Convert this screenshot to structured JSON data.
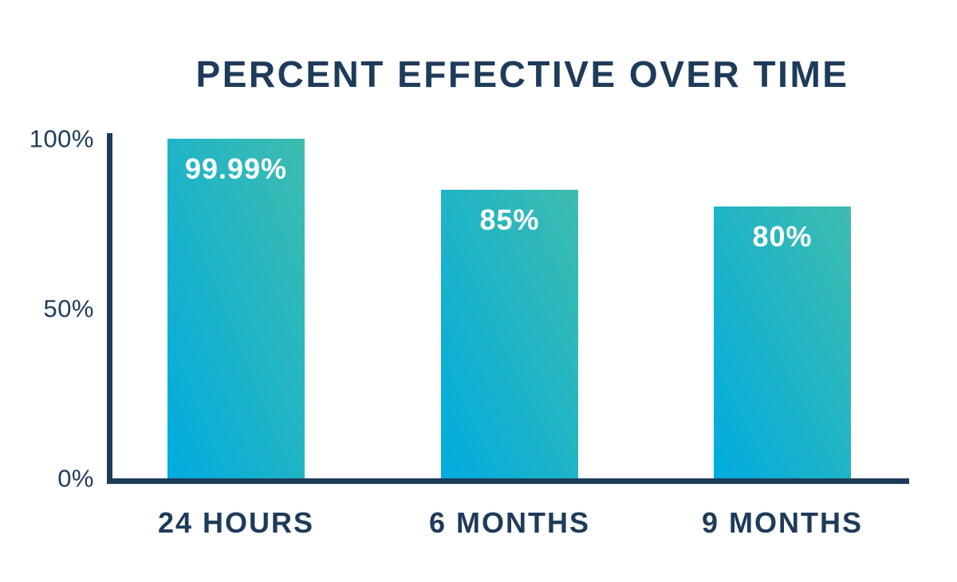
{
  "chart_data": {
    "type": "bar",
    "title": "PERCENT EFFECTIVE OVER TIME",
    "categories": [
      "24 HOURS",
      "6 MONTHS",
      "9 MONTHS"
    ],
    "values": [
      99.99,
      85,
      80
    ],
    "bar_labels": [
      "99.99%",
      "85%",
      "80%"
    ],
    "y_ticks": [
      {
        "label": "100%",
        "value": 100
      },
      {
        "label": "50%",
        "value": 50
      },
      {
        "label": "0%",
        "value": 0
      }
    ],
    "ylim": [
      0,
      100
    ],
    "xlabel": "",
    "ylabel": "",
    "grid": false,
    "legend": null,
    "colors": {
      "bar_gradient_start": "#00acdf",
      "bar_gradient_end": "#3ebcae",
      "axis": "#1f3b5a",
      "title_text": "#1f3b5a",
      "tick_text": "#1f3b5a",
      "bar_label_text": "#ffffff",
      "background": "#ffffff"
    }
  }
}
